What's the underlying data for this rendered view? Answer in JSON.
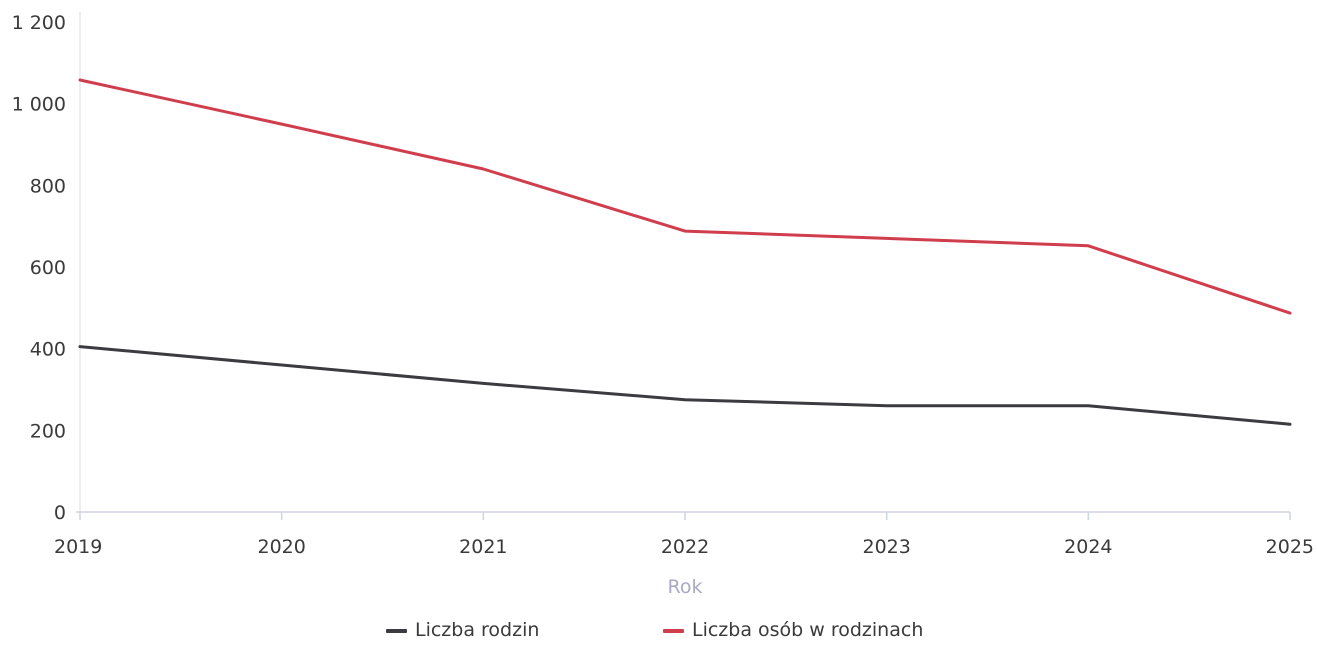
{
  "chart_data": {
    "type": "line",
    "title": "",
    "xlabel": "Rok",
    "ylabel": "",
    "categories": [
      "2019",
      "2020",
      "2021",
      "2022",
      "2023",
      "2024",
      "2025"
    ],
    "ylim": [
      0,
      1200
    ],
    "yticks": [
      0,
      200,
      400,
      600,
      800,
      1000,
      1200
    ],
    "ytick_labels": [
      "0",
      "200",
      "400",
      "600",
      "800",
      "1 000",
      "1 200"
    ],
    "grid": false,
    "legend_position": "bottom-center",
    "series": [
      {
        "name": "Liczba rodzin",
        "color": "#3b3b40",
        "values": [
          405,
          360,
          315,
          275,
          260,
          260,
          215
        ]
      },
      {
        "name": "Liczba osób w rodzinach",
        "color": "#d03d4c",
        "values": [
          1058,
          950,
          840,
          688,
          670,
          652,
          487
        ]
      }
    ]
  }
}
